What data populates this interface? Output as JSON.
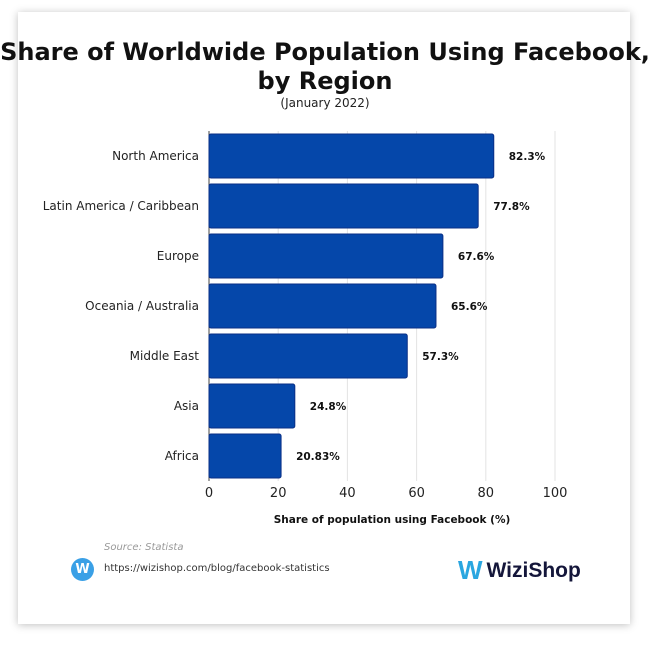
{
  "chart_data": {
    "type": "bar",
    "orientation": "horizontal",
    "title": "Share of Worldwide Population Using Facebook, by Region",
    "subtitle": "(January 2022)",
    "categories": [
      "North America",
      "Latin America / Caribbean",
      "Europe",
      "Oceania / Australia",
      "Middle East",
      "Asia",
      "Africa"
    ],
    "values": [
      82.3,
      77.8,
      67.6,
      65.6,
      57.3,
      24.8,
      20.83
    ],
    "data_labels": [
      "82.3%",
      "77.8%",
      "67.6%",
      "65.6%",
      "57.3%",
      "24.8%",
      "20.83%"
    ],
    "xlabel": "Share of population using Facebook (%)",
    "ylabel": "",
    "xlim": [
      0,
      100
    ],
    "xticks": [
      "0",
      "20",
      "40",
      "60",
      "80",
      "100"
    ],
    "grid": true,
    "bar_color": "#0547aa"
  },
  "footer": {
    "source": "Source: Statista",
    "url": "https://wizishop.com/blog/facebook-statistics",
    "brand": "WiziShop",
    "brand_mark": "W"
  }
}
